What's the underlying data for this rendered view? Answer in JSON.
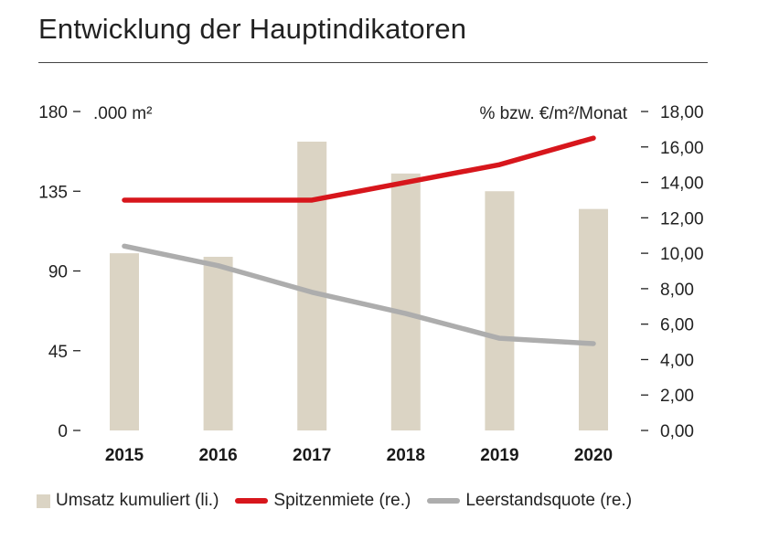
{
  "page": {
    "title": "Entwicklung der Hauptindikatoren"
  },
  "chart_data": {
    "type": "bar",
    "title": "Entwicklung der Hauptindikatoren",
    "categories": [
      "2015",
      "2016",
      "2017",
      "2018",
      "2019",
      "2020"
    ],
    "y_left": {
      "unit": ".000 m²",
      "range": [
        0,
        180
      ],
      "ticks": [
        0,
        45,
        90,
        135,
        180
      ],
      "tick_labels": [
        "0",
        "45",
        "90",
        "135",
        "180"
      ]
    },
    "y_right": {
      "unit": "% bzw. €/m²/Monat",
      "range": [
        0,
        18
      ],
      "ticks": [
        0,
        2,
        4,
        6,
        8,
        10,
        12,
        14,
        16,
        18
      ],
      "tick_labels": [
        "0,00",
        "2,00",
        "4,00",
        "6,00",
        "8,00",
        "10,00",
        "12,00",
        "14,00",
        "16,00",
        "18,00"
      ]
    },
    "series": [
      {
        "name": "Umsatz kumuliert (li.)",
        "type": "bar",
        "axis": "left",
        "color": "#dbd4c4",
        "values": [
          100,
          98,
          163,
          145,
          135,
          125
        ]
      },
      {
        "name": "Spitzenmiete (re.)",
        "type": "line",
        "axis": "right",
        "color": "#d7161c",
        "values": [
          13.0,
          13.0,
          13.0,
          14.0,
          15.0,
          16.5
        ]
      },
      {
        "name": "Leerstandsquote (re.)",
        "type": "line",
        "axis": "right",
        "color": "#adadad",
        "values": [
          10.4,
          9.3,
          7.8,
          6.6,
          5.2,
          4.9
        ]
      }
    ],
    "grid": false,
    "legend_position": "bottom"
  }
}
